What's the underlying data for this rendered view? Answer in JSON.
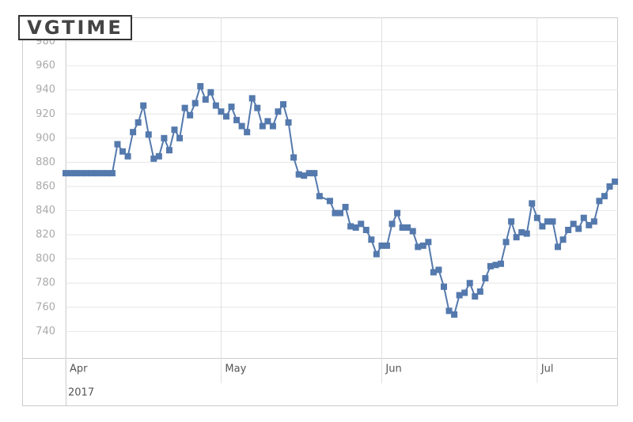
{
  "watermark": "VGTIME",
  "chart_data": {
    "type": "line",
    "x": [
      0,
      1,
      2,
      3,
      4,
      5,
      6,
      7,
      8,
      9,
      10,
      11,
      12,
      13,
      14,
      15,
      16,
      17,
      18,
      19,
      20,
      21,
      22,
      23,
      24,
      25,
      26,
      27,
      28,
      29,
      30,
      31,
      32,
      33,
      34,
      35,
      36,
      37,
      38,
      39,
      40,
      41,
      42,
      43,
      44,
      45,
      46,
      47,
      48,
      49,
      51,
      52,
      53,
      54,
      55,
      56,
      57,
      58,
      59,
      60,
      61,
      62,
      63,
      64,
      65,
      66,
      67,
      68,
      69,
      70,
      71,
      72,
      73,
      74,
      75,
      76,
      77,
      78,
      79,
      80,
      81,
      82,
      83,
      84,
      85,
      86,
      87,
      88,
      89,
      90,
      91,
      92,
      93,
      94,
      95,
      96,
      97,
      98,
      99,
      100,
      101,
      102,
      103,
      104,
      105,
      106
    ],
    "values": [
      871,
      871,
      871,
      871,
      871,
      871,
      871,
      871,
      871,
      871,
      895,
      889,
      885,
      905,
      913,
      927,
      903,
      883,
      885,
      900,
      890,
      907,
      900,
      925,
      919,
      929,
      943,
      932,
      938,
      927,
      922,
      918,
      926,
      915,
      910,
      905,
      933,
      925,
      910,
      914,
      910,
      922,
      928,
      913,
      884,
      870,
      869,
      871,
      871,
      852,
      848,
      838,
      838,
      843,
      827,
      826,
      829,
      824,
      816,
      804,
      811,
      811,
      829,
      838,
      826,
      826,
      823,
      810,
      811,
      814,
      789,
      791,
      777,
      757,
      754,
      770,
      772,
      780,
      769,
      773,
      784,
      794,
      795,
      796,
      814,
      831,
      818,
      822,
      821,
      846,
      834,
      827,
      831,
      831,
      810,
      816,
      824,
      829,
      825,
      834,
      828,
      831,
      848,
      852,
      860,
      864
    ],
    "color": "#5479ad",
    "xlim": [
      0,
      106.6
    ],
    "xticks": [
      {
        "value": 0,
        "label": "Apr"
      },
      {
        "value": 30,
        "label": "May"
      },
      {
        "value": 61,
        "label": "Jun"
      },
      {
        "value": 91,
        "label": "Jul"
      }
    ],
    "x_sublabel": "2017",
    "ylim": [
      718,
      1000
    ],
    "yticks": [
      740,
      760,
      780,
      800,
      820,
      840,
      860,
      880,
      900,
      920,
      940,
      960,
      980
    ],
    "grid": true
  }
}
